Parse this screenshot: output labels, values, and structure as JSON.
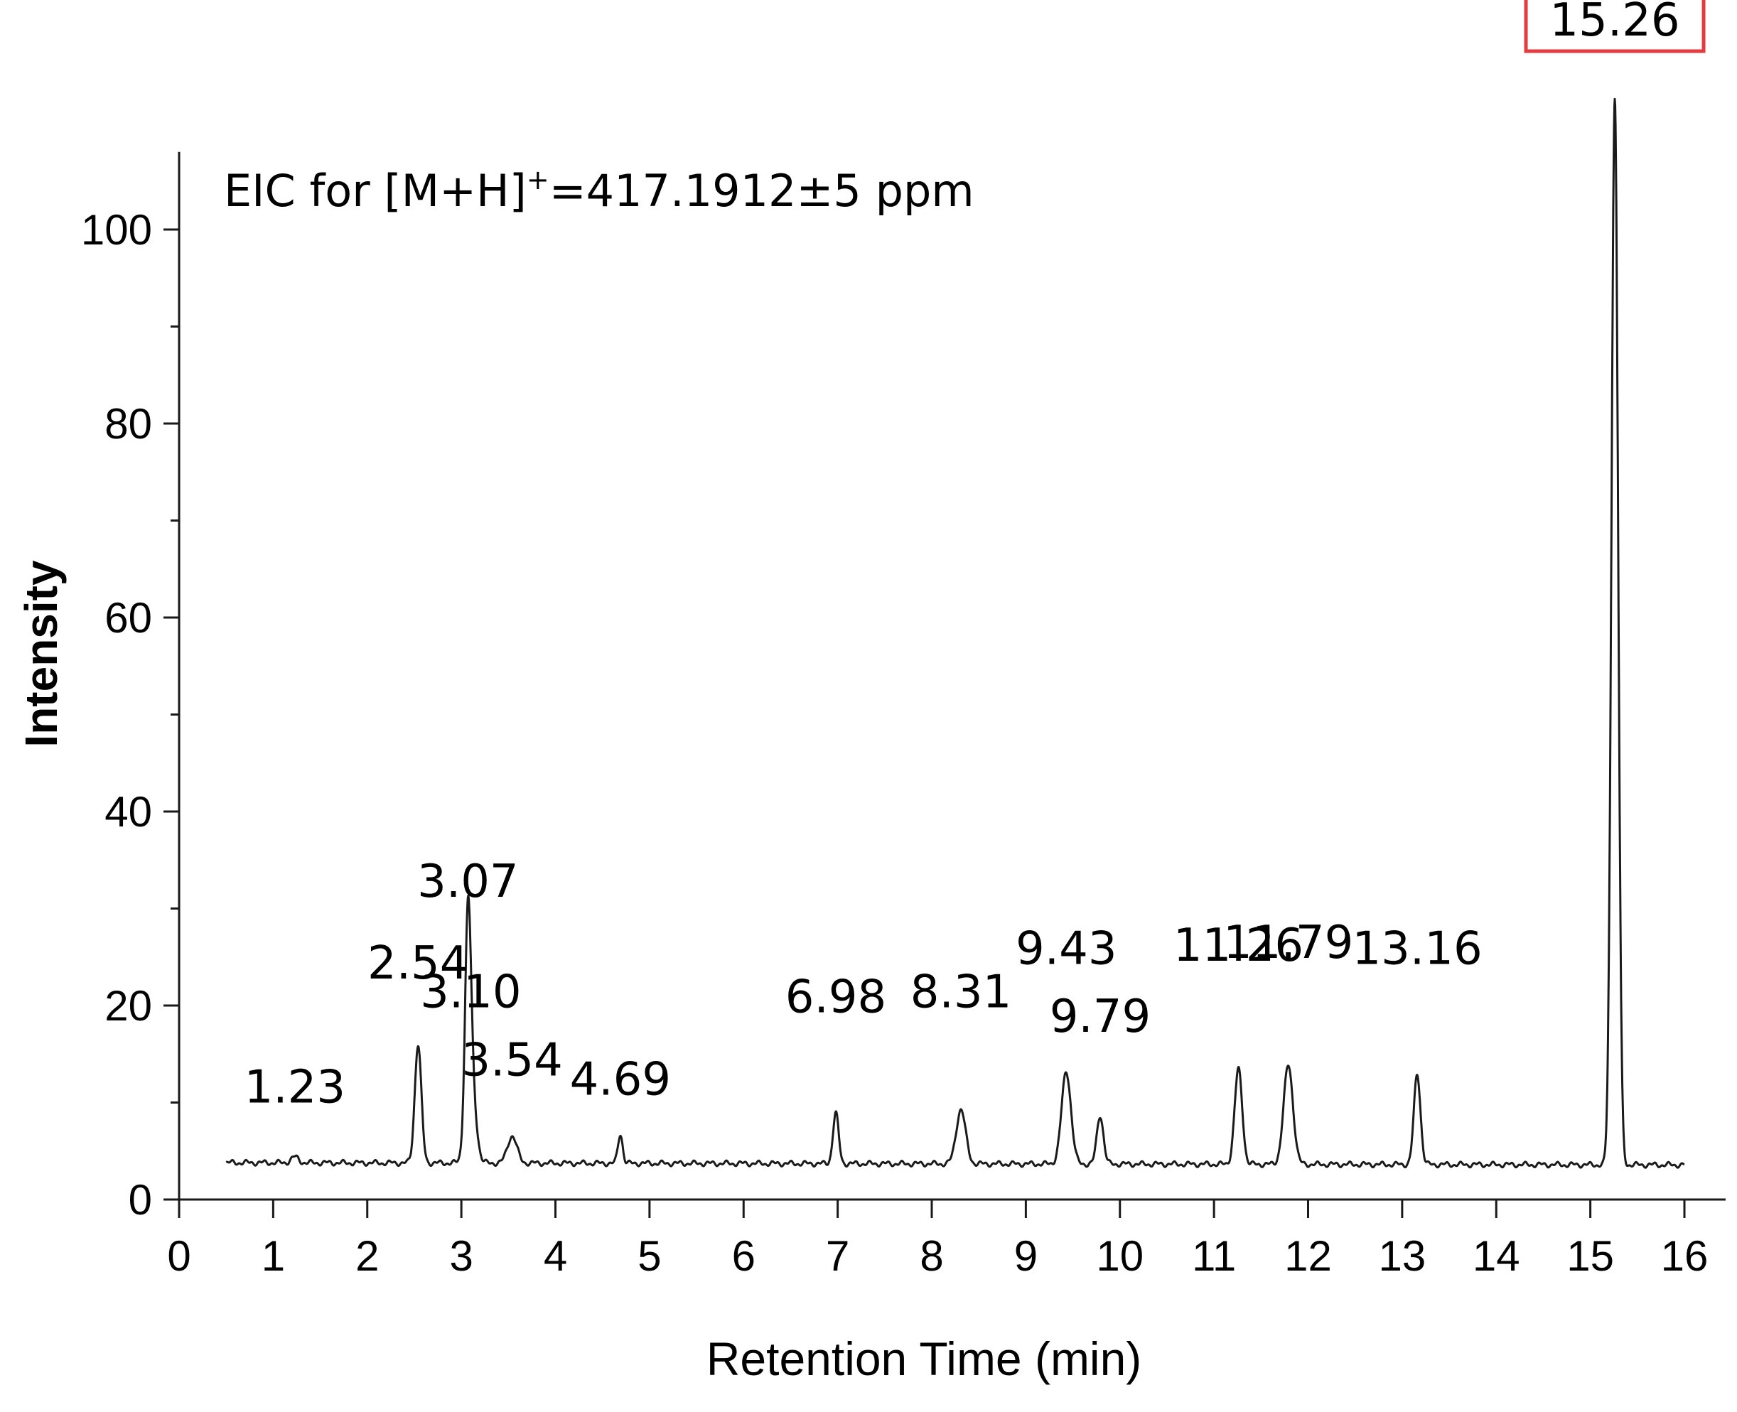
{
  "chart_data": {
    "type": "line",
    "annotation": {
      "prefix": "EIC for [M+H]",
      "superscript": "+",
      "suffix": "=417.1912±5 ppm"
    },
    "xlabel": "Retention Time (min)",
    "ylabel": "Intensity",
    "xlim": [
      0,
      16
    ],
    "ylim": [
      0,
      108
    ],
    "x_ticks": [
      0,
      1,
      2,
      3,
      4,
      5,
      6,
      7,
      8,
      9,
      10,
      11,
      12,
      13,
      14,
      15,
      16
    ],
    "y_ticks": [
      0,
      20,
      40,
      60,
      80,
      100
    ],
    "grid": false,
    "baseline": 3.8,
    "series": [
      {
        "peaks": [
          {
            "x": 1.23,
            "height": 0.6,
            "width": 0.04
          },
          {
            "x": 2.54,
            "height": 12.2,
            "width": 0.035
          },
          {
            "x": 3.07,
            "height": 19.8,
            "width": 0.03
          },
          {
            "x": 3.1,
            "height": 9.0,
            "width": 0.05
          },
          {
            "x": 3.54,
            "height": 2.8,
            "width": 0.05
          },
          {
            "x": 4.69,
            "height": 3.0,
            "width": 0.025
          },
          {
            "x": 6.98,
            "height": 5.2,
            "width": 0.03
          },
          {
            "x": 8.31,
            "height": 5.6,
            "width": 0.05
          },
          {
            "x": 9.43,
            "height": 9.5,
            "width": 0.05
          },
          {
            "x": 9.79,
            "height": 5.0,
            "width": 0.035
          },
          {
            "x": 11.26,
            "height": 9.8,
            "width": 0.04
          },
          {
            "x": 11.79,
            "height": 10.2,
            "width": 0.05
          },
          {
            "x": 13.16,
            "height": 9.3,
            "width": 0.035
          },
          {
            "x": 15.26,
            "height": 110.0,
            "width": 0.035
          }
        ]
      }
    ],
    "peak_labels": [
      {
        "text": "1.23",
        "x": 1.23,
        "y": 10.0
      },
      {
        "text": "2.54",
        "x": 2.54,
        "y": 22.8
      },
      {
        "text": "3.07",
        "x": 3.07,
        "y": 31.2
      },
      {
        "text": "3.10",
        "x": 3.1,
        "y": 19.8
      },
      {
        "text": "3.54",
        "x": 3.54,
        "y": 12.8
      },
      {
        "text": "4.69",
        "x": 4.69,
        "y": 10.8
      },
      {
        "text": "6.98",
        "x": 6.98,
        "y": 19.3
      },
      {
        "text": "8.31",
        "x": 8.31,
        "y": 19.8
      },
      {
        "text": "9.43",
        "x": 9.43,
        "y": 24.3
      },
      {
        "text": "9.79",
        "x": 9.79,
        "y": 17.3
      },
      {
        "text": "11.26",
        "x": 11.26,
        "y": 24.6
      },
      {
        "text": "11.79",
        "x": 11.79,
        "y": 24.9
      },
      {
        "text": "13.16",
        "x": 13.16,
        "y": 24.3
      },
      {
        "text": "15.26",
        "x": 15.26,
        "y": 120.0,
        "highlighted": true
      }
    ],
    "highlight_color": "#e33b3f",
    "line_color": "#1a1a1a"
  }
}
